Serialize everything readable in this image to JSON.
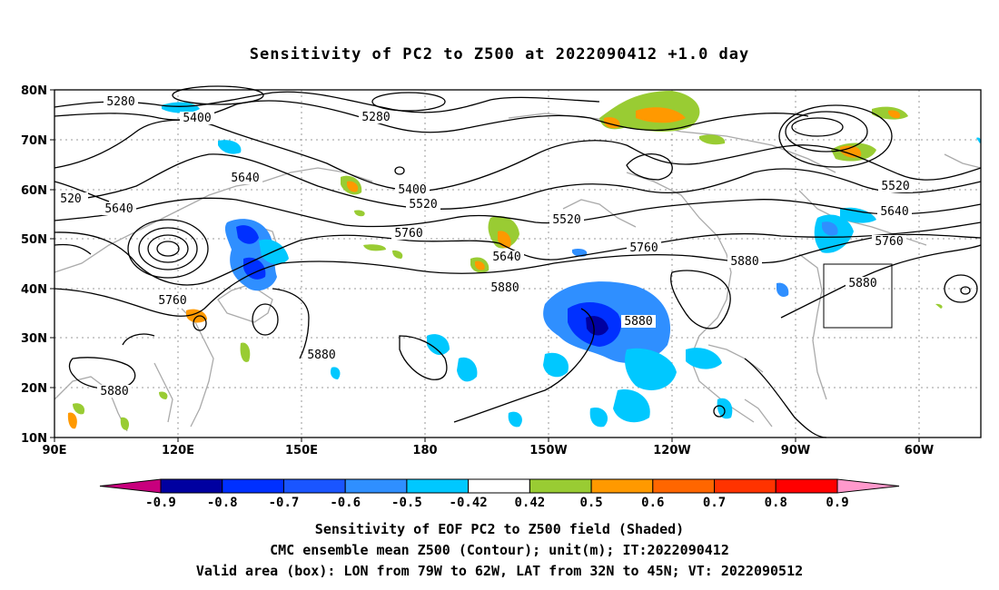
{
  "title": "Sensitivity of PC2 to Z500 at 2022090412 +1.0 day",
  "lat_ticks": [
    "80N",
    "70N",
    "60N",
    "50N",
    "40N",
    "30N",
    "20N",
    "10N"
  ],
  "lon_ticks": [
    "90E",
    "120E",
    "150E",
    "180",
    "150W",
    "120W",
    "90W",
    "60W"
  ],
  "contour_labels": [
    "5280",
    "5400",
    "5280",
    "5400",
    "5520",
    "5640",
    "5520",
    "520",
    "5640",
    "5760",
    "5520",
    "5640",
    "5760",
    "5640",
    "5760",
    "5880",
    "5880",
    "5760",
    "5880",
    "5880",
    "5880",
    "5880"
  ],
  "colorbar": {
    "labels": [
      "-0.9",
      "-0.8",
      "-0.7",
      "-0.6",
      "-0.5",
      "-0.42",
      "0.42",
      "0.5",
      "0.6",
      "0.7",
      "0.8",
      "0.9"
    ],
    "colors": [
      "#0000a0",
      "#0030ff",
      "#1a55ff",
      "#2f8fff",
      "#00c8ff",
      "#ffffff",
      "#99cc33",
      "#ff9900",
      "#ff6600",
      "#ff3300",
      "#ff0000"
    ],
    "low_extend_color": "#c8007d",
    "high_extend_color": "#ff99cc"
  },
  "footer": {
    "line1": "Sensitivity of EOF PC2 to Z500 field (Shaded)",
    "line2": "CMC ensemble mean Z500 (Contour); unit(m); IT:2022090412",
    "line3": "Valid area (box): LON from 79W to 62W, LAT from 32N to 45N; VT: 2022090512"
  },
  "valid_box": {
    "lon_min": -79,
    "lon_max": -62,
    "lat_min": 32,
    "lat_max": 45
  }
}
